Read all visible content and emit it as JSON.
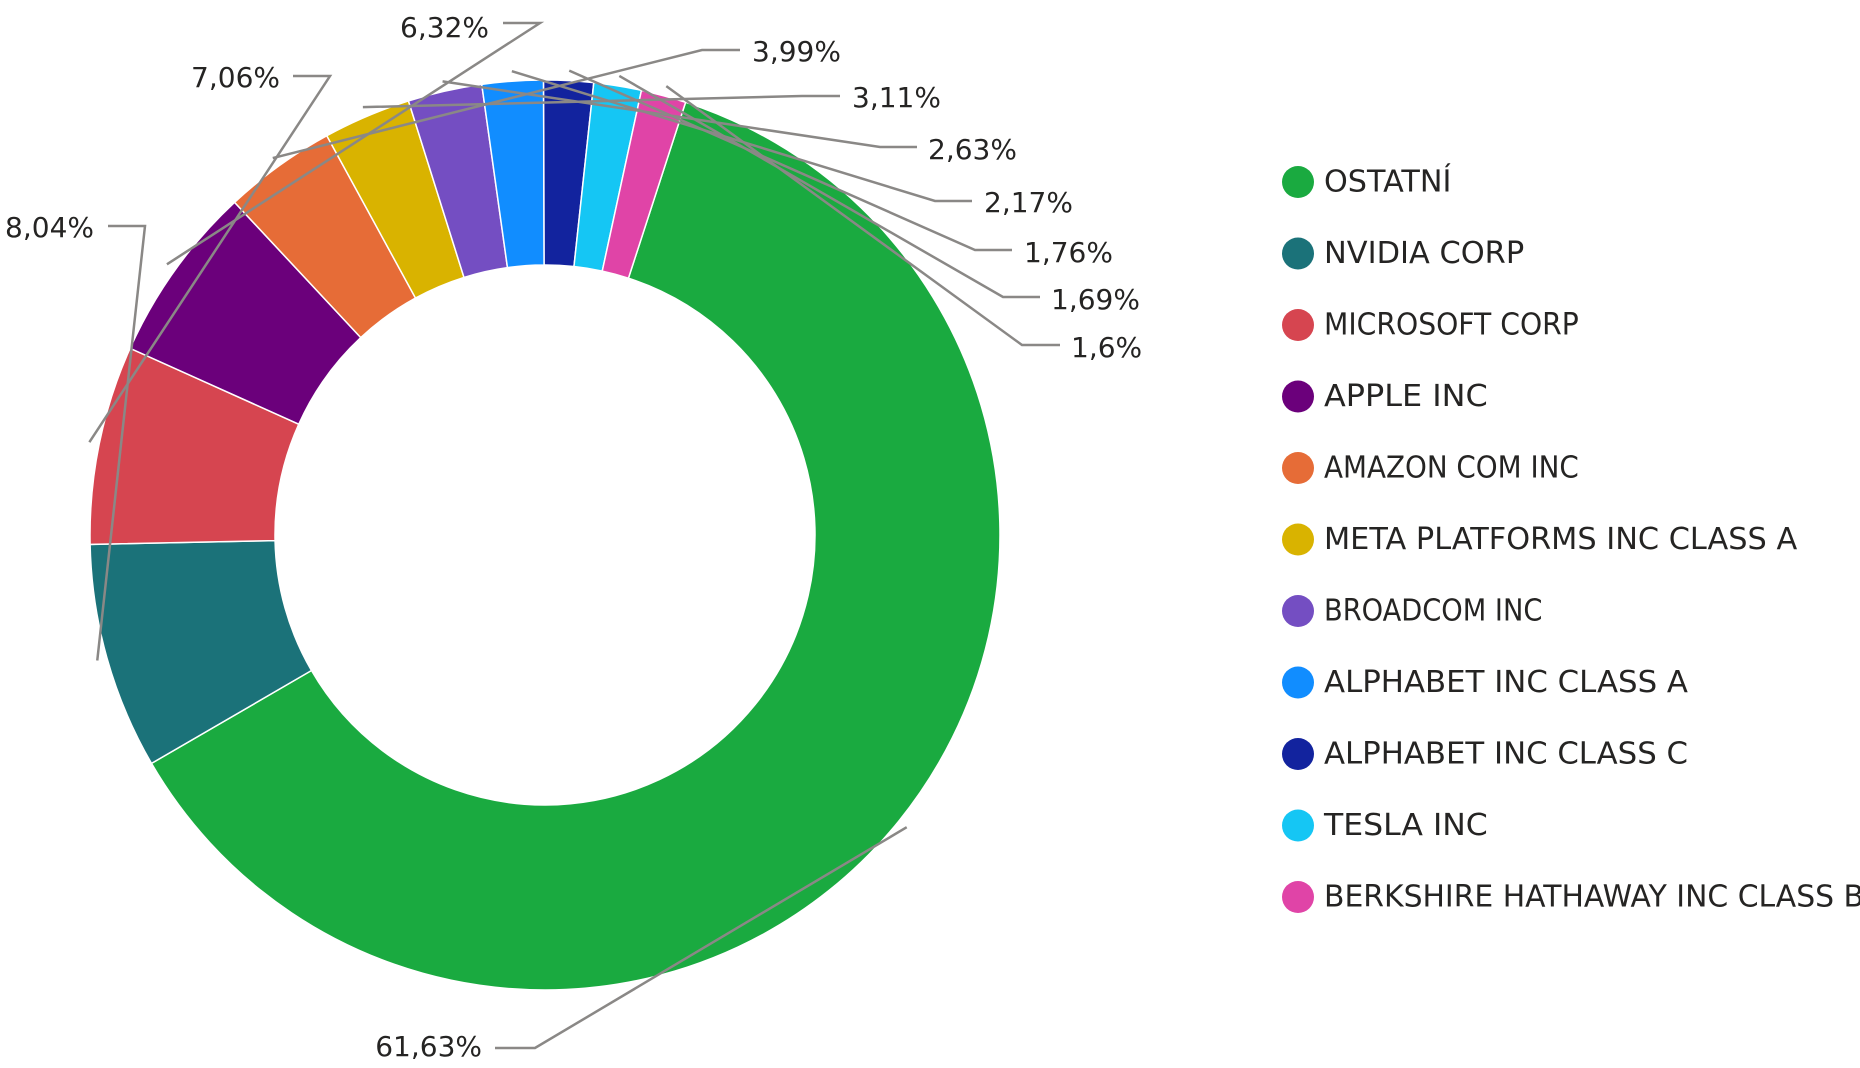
{
  "chart_data": {
    "type": "pie",
    "donut": true,
    "title": "",
    "legend_position": "right",
    "slices": [
      {
        "label": "OSTATNÍ",
        "value": 61.63,
        "display": "61,63%",
        "color": "#1aaa40"
      },
      {
        "label": "NVIDIA CORP",
        "value": 8.04,
        "display": "8,04%",
        "color": "#1b7279"
      },
      {
        "label": "MICROSOFT CORP",
        "value": 7.06,
        "display": "7,06%",
        "color": "#d64550"
      },
      {
        "label": "APPLE INC",
        "value": 6.32,
        "display": "6,32%",
        "color": "#6b007b"
      },
      {
        "label": "AMAZON COM INC",
        "value": 3.99,
        "display": "3,99%",
        "color": "#e66c37"
      },
      {
        "label": "META PLATFORMS INC CLASS A",
        "value": 3.11,
        "display": "3,11%",
        "color": "#d9b300"
      },
      {
        "label": "BROADCOM INC",
        "value": 2.63,
        "display": "2,63%",
        "color": "#744ec2"
      },
      {
        "label": "ALPHABET INC CLASS A",
        "value": 2.17,
        "display": "2,17%",
        "color": "#118dff"
      },
      {
        "label": "ALPHABET INC CLASS C",
        "value": 1.76,
        "display": "1,76%",
        "color": "#12239e"
      },
      {
        "label": "TESLA INC",
        "value": 1.69,
        "display": "1,69%",
        "color": "#15c6f4"
      },
      {
        "label": "BERKSHIRE HATHAWAY INC CLASS B",
        "value": 1.6,
        "display": "1,6%",
        "color": "#e044a7"
      }
    ]
  }
}
